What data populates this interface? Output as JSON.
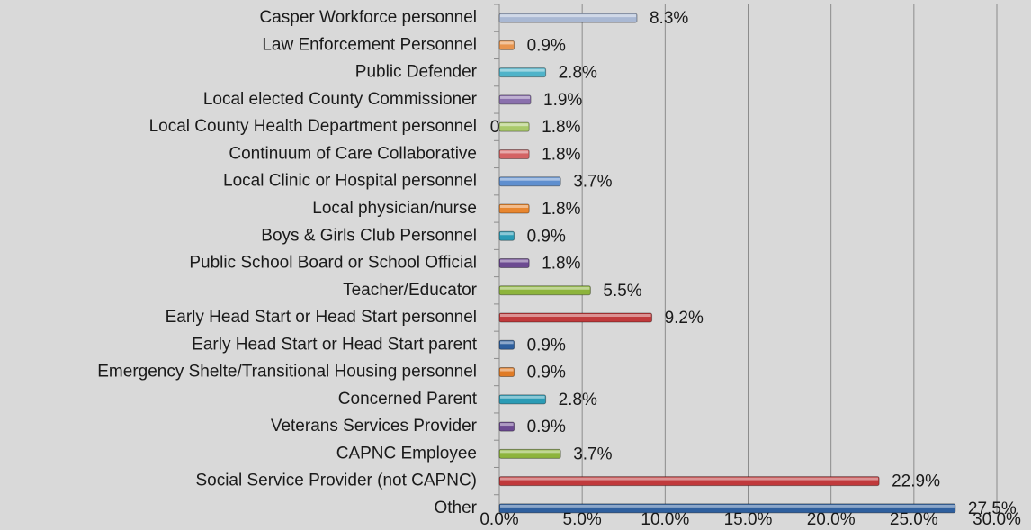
{
  "chart_data": {
    "type": "barh",
    "categories": [
      "Casper Workforce personnel",
      "Law Enforcement Personnel",
      "Public Defender",
      "Local elected County Commissioner",
      "Local County Health Department personnel",
      "Continuum of Care Collaborative",
      "Local Clinic or Hospital personnel",
      "Local physician/nurse",
      "Boys & Girls Club Personnel",
      "Public School Board or School Official",
      "Teacher/Educator",
      "Early Head Start or Head Start personnel",
      "Early Head Start or Head Start parent",
      "Emergency Shelte/Transitional Housing personnel",
      "Concerned Parent",
      "Veterans Services Provider",
      "CAPNC Employee",
      "Social Service Provider (not CAPNC)",
      "Other"
    ],
    "values": [
      8.3,
      0.9,
      2.8,
      1.9,
      1.8,
      1.8,
      3.7,
      1.8,
      0.9,
      1.8,
      5.5,
      9.2,
      0.9,
      0.9,
      2.8,
      0.9,
      3.7,
      22.9,
      27.5
    ],
    "value_labels": [
      "8.3%",
      "0.9%",
      "2.8%",
      "1.9%",
      "1.8%",
      "1.8%",
      "3.7%",
      "1.8%",
      "0.9%",
      "1.8%",
      "5.5%",
      "9.2%",
      "0.9%",
      "0.9%",
      "2.8%",
      "0.9%",
      "3.7%",
      "22.9%",
      "27.5%"
    ],
    "colors": [
      "#a9b8d3",
      "#e8954f",
      "#4fb3c9",
      "#8a70ad",
      "#a9c96a",
      "#d46364",
      "#5f8fcf",
      "#e8862f",
      "#2a9bb5",
      "#6c4a91",
      "#8db43c",
      "#c0393b",
      "#2e5f9e",
      "#e07b26",
      "#2a9bb5",
      "#6c4a91",
      "#8db43c",
      "#c0393b",
      "#2e5f9e"
    ],
    "annotations": [
      "0"
    ],
    "xlim": [
      0,
      30
    ],
    "xticks": [
      {
        "value": 0,
        "label": "0.0%"
      },
      {
        "value": 5,
        "label": "5.0%"
      },
      {
        "value": 10,
        "label": "10.0%"
      },
      {
        "value": 15,
        "label": "15.0%"
      },
      {
        "value": 20,
        "label": "20.0%"
      },
      {
        "value": 25,
        "label": "25.0%"
      },
      {
        "value": 30,
        "label": "30.0%"
      }
    ],
    "grid": true
  }
}
